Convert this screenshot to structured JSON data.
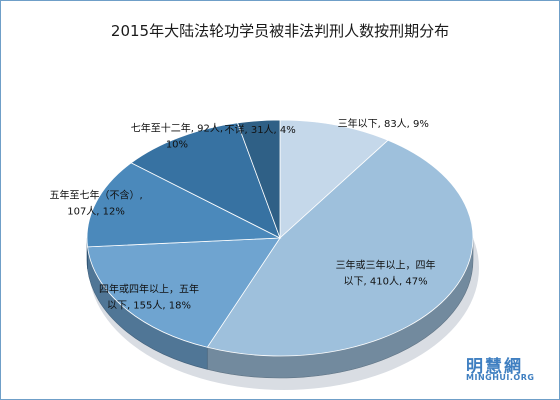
{
  "chart_data": {
    "type": "pie",
    "title": "2015年大陆法轮功学员被非法判刑人数按刑期分布",
    "categories": [
      "三年以下",
      "三年或三年以上，四年以下",
      "四年或四年以上，五年以下",
      "五年至七年（不含）",
      "七年至十二年",
      "不详"
    ],
    "values": [
      83,
      410,
      155,
      107,
      92,
      31
    ],
    "percents": [
      9,
      47,
      18,
      12,
      10,
      4
    ],
    "colors": [
      "#c5d8ea",
      "#9ec0dc",
      "#6fa4d0",
      "#4b89bb",
      "#3772a2",
      "#2f6086"
    ],
    "label_lines": [
      [
        "三年以下, 83人, 9%"
      ],
      [
        "三年或三年以上，四年",
        "以下, 410人, 47%"
      ],
      [
        "四年或四年以上，五年",
        "以下, 155人, 18%"
      ],
      [
        "五年至七年（不含）,",
        "107人, 12%"
      ],
      [
        "七年至十二年, 92人,",
        "10%"
      ],
      [
        "不详, 31人, 4%"
      ]
    ]
  },
  "watermark": {
    "text_cn": "明慧網",
    "text_en": "MINGHUI.ORG"
  }
}
